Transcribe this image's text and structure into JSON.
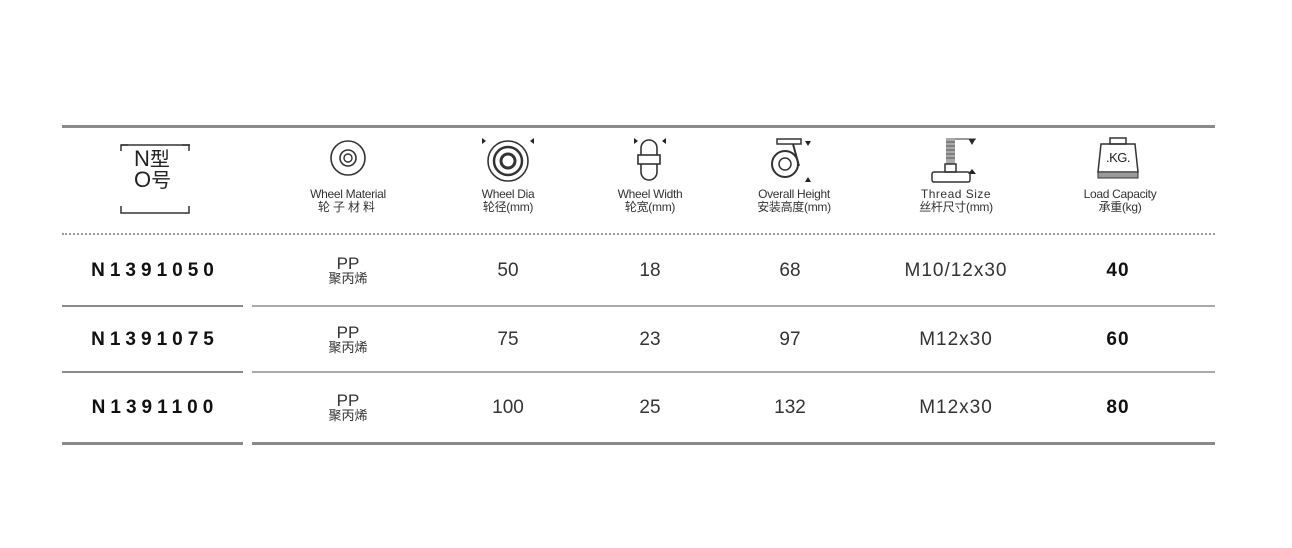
{
  "header": {
    "no_label": {
      "n": "N",
      "o": "O",
      "cn1": "型",
      "cn2": "号"
    },
    "columns": [
      {
        "en": "Wheel Material",
        "cn": "轮子材料",
        "icon": "wheel-material-icon"
      },
      {
        "en": "Wheel Dia",
        "cn": "轮径(mm)",
        "icon": "wheel-diameter-icon"
      },
      {
        "en": "Wheel Width",
        "cn": "轮宽(mm)",
        "icon": "wheel-width-icon"
      },
      {
        "en": "Overall Height",
        "cn": "安装高度(mm)",
        "icon": "caster-height-icon"
      },
      {
        "en": "Thread Size",
        "cn": "丝杆尺寸(mm)",
        "icon": "thread-stem-icon"
      },
      {
        "en": "Load Capacity",
        "cn": "承重(kg)",
        "icon": "weight-kg-icon",
        "icon_text": ".KG."
      }
    ]
  },
  "rows": [
    {
      "model": "N1391050",
      "material_en": "PP",
      "material_cn": "聚丙烯",
      "dia": "50",
      "width": "18",
      "height": "68",
      "thread": "M10/12x30",
      "load": "40"
    },
    {
      "model": "N1391075",
      "material_en": "PP",
      "material_cn": "聚丙烯",
      "dia": "75",
      "width": "23",
      "height": "97",
      "thread": "M12x30",
      "load": "60"
    },
    {
      "model": "N1391100",
      "material_en": "PP",
      "material_cn": "聚丙烯",
      "dia": "100",
      "width": "25",
      "height": "132",
      "thread": "M12x30",
      "load": "80"
    }
  ]
}
